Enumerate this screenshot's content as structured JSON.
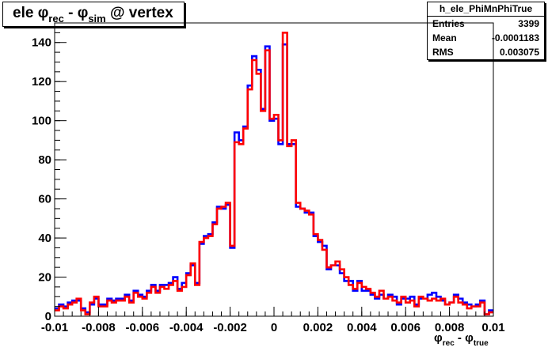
{
  "title": {
    "main": "ele ",
    "phi1": "φ",
    "sub1": "rec",
    "mid": " - ",
    "phi2": "φ",
    "sub2": "sim",
    "tail": " @ vertex"
  },
  "stats": {
    "name": "h_ele_PhiMnPhiTrue",
    "rows": [
      {
        "label": "Entries",
        "value": "3399"
      },
      {
        "label": "Mean",
        "value": "-0.0001183"
      },
      {
        "label": "RMS",
        "value": "0.003075"
      }
    ]
  },
  "xaxis_label": {
    "phi1": "φ",
    "sub1": "rec",
    "mid": " - ",
    "phi2": "φ",
    "sub2": "true"
  },
  "colors": {
    "series1": "#0000ff",
    "series2": "#ff0000",
    "frame": "#000000"
  },
  "chart_data": {
    "type": "histogram",
    "xlim": [
      -0.01,
      0.01
    ],
    "ylim": [
      0,
      150
    ],
    "x_ticks": [
      "-0.01",
      "-0.008",
      "-0.006",
      "-0.004",
      "-0.002",
      "0",
      "0.002",
      "0.004",
      "0.006",
      "0.008",
      "0.01"
    ],
    "y_ticks": [
      "0",
      "20",
      "40",
      "60",
      "80",
      "100",
      "120",
      "140"
    ],
    "bins": 100,
    "series": [
      {
        "color": "blue",
        "values": [
          4,
          6,
          5,
          7,
          8,
          8,
          4,
          2,
          6,
          9,
          6,
          6,
          9,
          8,
          9,
          9,
          11,
          8,
          13,
          11,
          10,
          13,
          16,
          13,
          16,
          16,
          17,
          20,
          14,
          17,
          22,
          26,
          17,
          37,
          41,
          42,
          48,
          56,
          55,
          57,
          35,
          94,
          90,
          97,
          118,
          133,
          126,
          106,
          138,
          100,
          101,
          88,
          139,
          88,
          88,
          56,
          55,
          53,
          53,
          41,
          38,
          36,
          24,
          26,
          26,
          22,
          18,
          18,
          13,
          18,
          13,
          13,
          11,
          9,
          11,
          9,
          11,
          10,
          6,
          9,
          9,
          10,
          6,
          9,
          9,
          11,
          12,
          10,
          8,
          6,
          7,
          11,
          9,
          7,
          6,
          5,
          6,
          8,
          1,
          3
        ]
      },
      {
        "color": "red",
        "values": [
          3,
          5,
          4,
          6,
          7,
          9,
          3,
          1,
          7,
          10,
          5,
          5,
          8,
          7,
          8,
          8,
          10,
          7,
          12,
          10,
          9,
          12,
          15,
          12,
          15,
          14,
          16,
          18,
          13,
          15,
          21,
          27,
          16,
          38,
          40,
          41,
          47,
          55,
          56,
          58,
          36,
          89,
          88,
          96,
          116,
          131,
          124,
          105,
          136,
          101,
          103,
          90,
          145,
          87,
          90,
          58,
          55,
          54,
          52,
          42,
          39,
          34,
          25,
          26,
          28,
          24,
          20,
          16,
          14,
          17,
          15,
          14,
          12,
          10,
          13,
          9,
          10,
          8,
          7,
          10,
          7,
          8,
          5,
          10,
          9,
          8,
          9,
          8,
          9,
          6,
          7,
          10,
          7,
          6,
          4,
          5,
          5,
          7,
          1,
          2
        ]
      }
    ]
  }
}
